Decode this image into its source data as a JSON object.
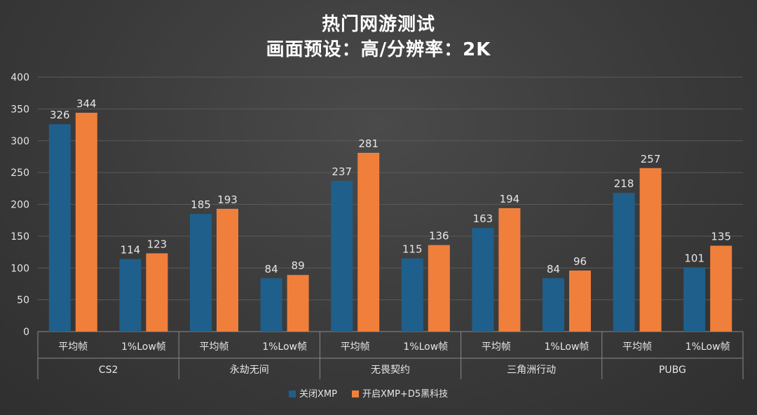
{
  "header": {
    "title_line1": "热门网游测试",
    "title_line2": "画面预设：高/分辨率：2K"
  },
  "chart_data": {
    "type": "bar",
    "title": "热门网游测试 画面预设：高/分辨率：2K",
    "xlabel": "",
    "ylabel": "",
    "ylim": [
      0,
      400
    ],
    "yticks": [
      0,
      50,
      100,
      150,
      200,
      250,
      300,
      350,
      400
    ],
    "grid": true,
    "legend_position": "bottom",
    "groups": [
      "CS2",
      "永劫无间",
      "无畏契约",
      "三角洲行动",
      "PUBG"
    ],
    "subcategories": [
      "平均帧",
      "1%Low帧"
    ],
    "categories": [
      "CS2 平均帧",
      "CS2 1%Low帧",
      "永劫无间 平均帧",
      "永劫无间 1%Low帧",
      "无畏契约 平均帧",
      "无畏契约 1%Low帧",
      "三角洲行动 平均帧",
      "三角洲行动 1%Low帧",
      "PUBG 平均帧",
      "PUBG 1%Low帧"
    ],
    "series": [
      {
        "name": "关闭XMP",
        "color": "#1f5f8b",
        "values": [
          326,
          114,
          185,
          84,
          237,
          115,
          163,
          84,
          218,
          101
        ]
      },
      {
        "name": "开启XMP+D5黑科技",
        "color": "#f07f3c",
        "values": [
          344,
          123,
          193,
          89,
          281,
          136,
          194,
          96,
          257,
          135
        ]
      }
    ]
  }
}
